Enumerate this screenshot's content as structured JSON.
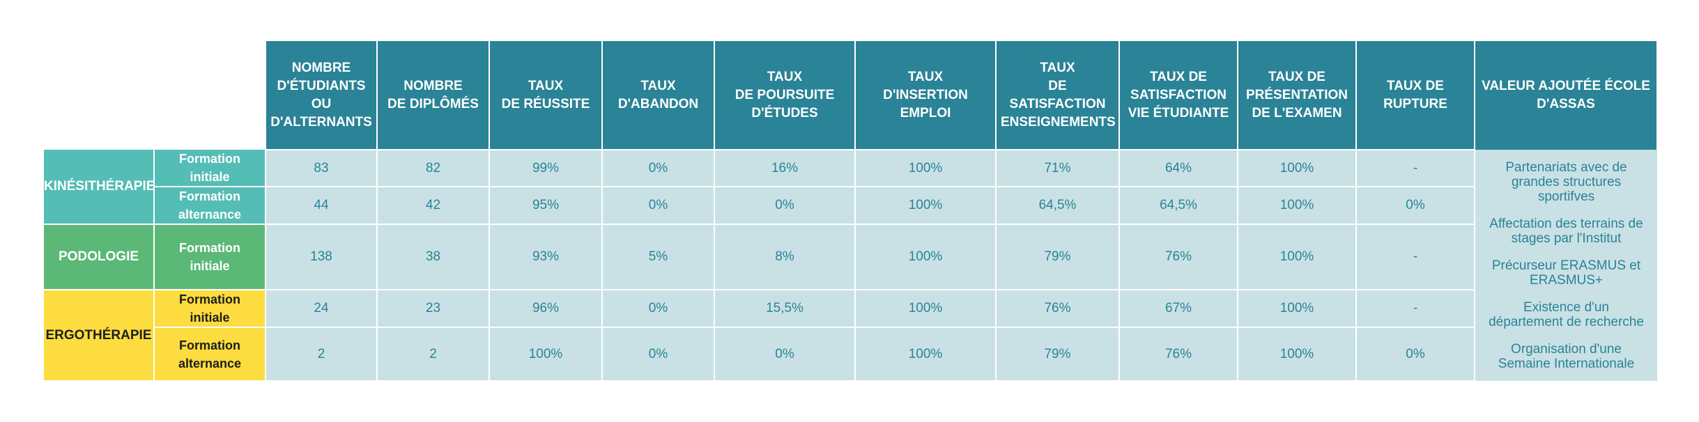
{
  "headers": [
    "NOMBRE\nD'ÉTUDIANTS\nOU\nD'ALTERNANTS",
    "NOMBRE\nDE DIPLÔMÉS",
    "TAUX\nDE RÉUSSITE",
    "TAUX\nD'ABANDON",
    "TAUX\nDE POURSUITE\nD'ÉTUDES",
    "TAUX\nD'INSERTION\nEMPLOI",
    "TAUX\nDE SATISFACTION\nENSEIGNEMENTS",
    "TAUX DE\nSATISFACTION\nVIE ÉTUDIANTE",
    "TAUX DE\nPRÉSENTATION\nDE L'EXAMEN",
    "TAUX DE\nRUPTURE",
    "VALEUR AJOUTÉE ÉCOLE\nD'ASSAS"
  ],
  "categories": [
    {
      "name": "KINÉSITHÉRAPIE",
      "color": "#54bdb5"
    },
    {
      "name": "PODOLOGIE",
      "color": "#5bb877"
    },
    {
      "name": "ERGOTHÉRAPIE",
      "color": "#fcdc3f"
    }
  ],
  "rows": [
    {
      "formation": "Formation\ninitiale",
      "values": [
        "83",
        "82",
        "99%",
        "0%",
        "16%",
        "100%",
        "71%",
        "64%",
        "100%",
        "-"
      ]
    },
    {
      "formation": "Formation\nalternance",
      "values": [
        "44",
        "42",
        "95%",
        "0%",
        "0%",
        "100%",
        "64,5%",
        "64,5%",
        "100%",
        "0%"
      ]
    },
    {
      "formation": "Formation\ninitiale",
      "values": [
        "138",
        "38",
        "93%",
        "5%",
        "8%",
        "100%",
        "79%",
        "76%",
        "100%",
        "-"
      ]
    },
    {
      "formation": "Formation\ninitiale",
      "values": [
        "24",
        "23",
        "96%",
        "0%",
        "15,5%",
        "100%",
        "76%",
        "67%",
        "100%",
        "-"
      ]
    },
    {
      "formation": "Formation\nalternance",
      "values": [
        "2",
        "2",
        "100%",
        "0%",
        "0%",
        "100%",
        "79%",
        "76%",
        "100%",
        "0%"
      ]
    }
  ],
  "valeur_ajoutee": [
    "Partenariats avec de\ngrandes structures\nsportifves",
    "Affectation des terrains de\nstages par l'Institut",
    "Précurseur ERASMUS et\nERASMUS+",
    "Existence d'un\ndépartement de recherche",
    "Organisation d'une\nSemaine Internationale"
  ],
  "colors": {
    "header": "#2a8396",
    "cell": "#c9e1e5",
    "text": "#2a8396"
  }
}
